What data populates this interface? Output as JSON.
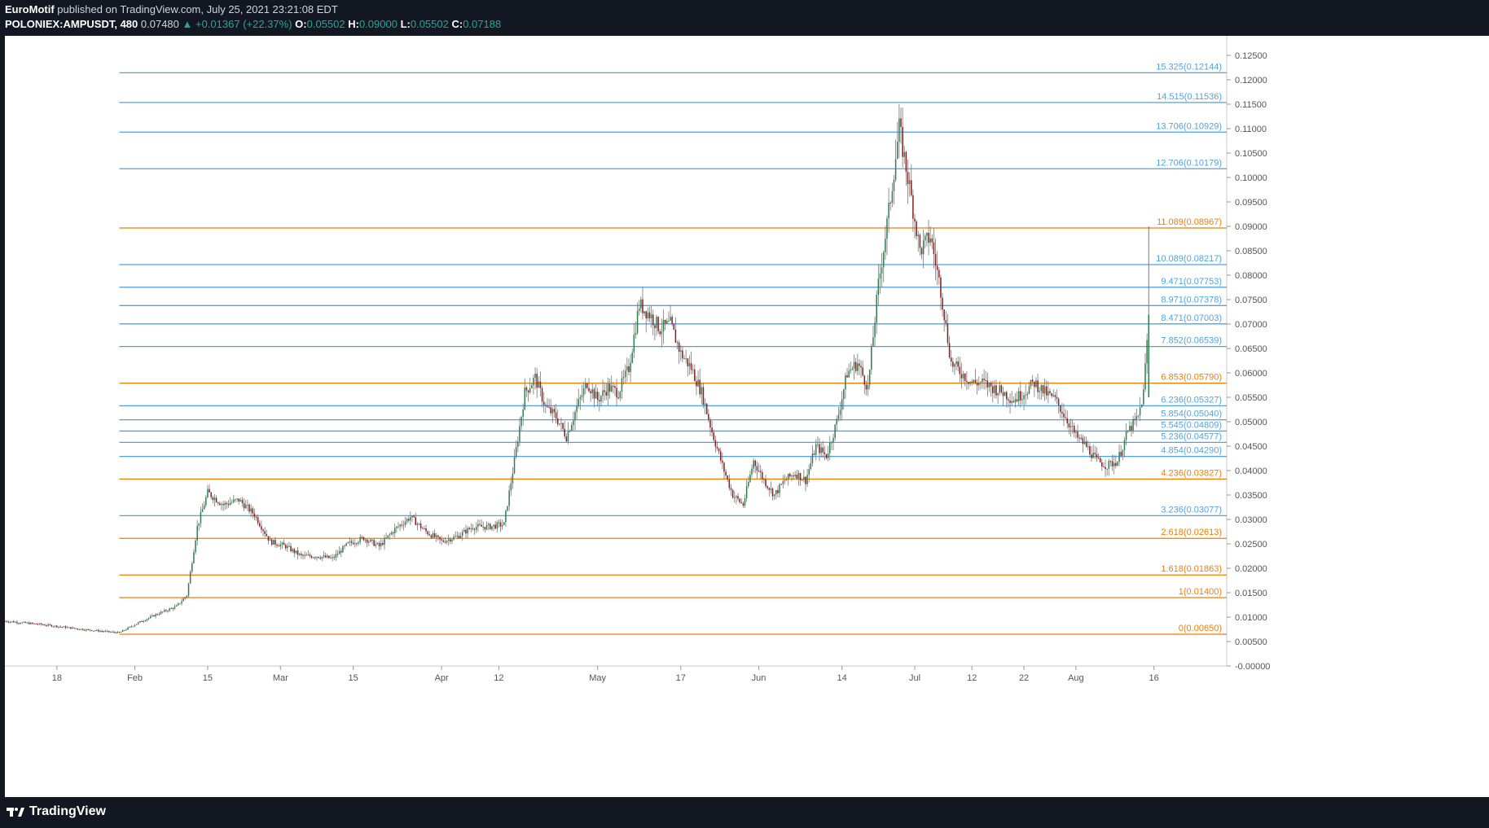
{
  "header": {
    "publisher": "EuroMotif",
    "published_text": "published on TradingView.com, July 25, 2021 23:21:08 EDT",
    "symbol": "POLONIEX:AMPUSDT, 480",
    "last": "0.07480",
    "change": "▲ +0.01367 (+22.37%)",
    "o_label": "O:",
    "o_value": "0.05502",
    "h_label": "H:",
    "h_value": "0.09000",
    "l_label": "L:",
    "l_value": "0.05502",
    "c_label": "C:",
    "c_value": "0.07188"
  },
  "footer": {
    "brand": "TradingView"
  },
  "colors": {
    "up": "#26a69a",
    "candle_up": "#2e7d4f",
    "candle_down": "#8b1a1a",
    "fib_blue": "#4fa3e0",
    "fib_orange": "#f57c00",
    "axis_text": "#555555"
  },
  "chart_data": {
    "type": "candlestick",
    "symbol": "AMPUSDT",
    "timeframe": "480",
    "ylim": [
      0,
      0.128
    ],
    "y_ticks": [
      "0.12500",
      "0.12000",
      "0.11500",
      "0.11000",
      "0.10500",
      "0.10000",
      "0.09500",
      "0.09000",
      "0.08500",
      "0.08000",
      "0.07500",
      "0.07000",
      "0.06500",
      "0.06000",
      "0.05500",
      "0.05000",
      "0.04500",
      "0.04000",
      "0.03500",
      "0.03000",
      "0.02500",
      "0.02000",
      "0.01500",
      "0.01000",
      "0.00500",
      "-0.00000"
    ],
    "x_ticks": [
      "18",
      "Feb",
      "15",
      "Mar",
      "15",
      "Apr",
      "12",
      "May",
      "17",
      "Jun",
      "14",
      "Jul",
      "12",
      "22",
      "Aug",
      "16"
    ],
    "x_tick_days": [
      17,
      32,
      46,
      60,
      74,
      91,
      102,
      121,
      137,
      152,
      168,
      182,
      193,
      203,
      213,
      228
    ],
    "x_range_days": [
      7,
      242
    ],
    "fib_start_day": 29,
    "fib_levels": [
      {
        "label": "15.325(0.12144)",
        "value": 0.12144,
        "color": "blue"
      },
      {
        "label": "14.515(0.11536)",
        "value": 0.11536,
        "color": "blue"
      },
      {
        "label": "13.706(0.10929)",
        "value": 0.10929,
        "color": "blue"
      },
      {
        "label": "12.706(0.10179)",
        "value": 0.10179,
        "color": "blue"
      },
      {
        "label": "11.089(0.08967)",
        "value": 0.08967,
        "color": "orange"
      },
      {
        "label": "10.089(0.08217)",
        "value": 0.08217,
        "color": "blue"
      },
      {
        "label": "9.471(0.07753)",
        "value": 0.07753,
        "color": "blue"
      },
      {
        "label": "8.971(0.07378)",
        "value": 0.07378,
        "color": "blue"
      },
      {
        "label": "8.471(0.07003)",
        "value": 0.07003,
        "color": "blue"
      },
      {
        "label": "7.852(0.06539)",
        "value": 0.06539,
        "color": "blue"
      },
      {
        "label": "6.853(0.05790)",
        "value": 0.0579,
        "color": "orange"
      },
      {
        "label": "6.236(0.05327)",
        "value": 0.05327,
        "color": "blue"
      },
      {
        "label": "5.854(0.05040)",
        "value": 0.0504,
        "color": "blue"
      },
      {
        "label": "5.545(0.04809)",
        "value": 0.04809,
        "color": "blue"
      },
      {
        "label": "5.236(0.04577)",
        "value": 0.04577,
        "color": "blue"
      },
      {
        "label": "4.854(0.04290)",
        "value": 0.0429,
        "color": "blue"
      },
      {
        "label": "4.236(0.03827)",
        "value": 0.03827,
        "color": "orange"
      },
      {
        "label": "3.236(0.03077)",
        "value": 0.03077,
        "color": "blue"
      },
      {
        "label": "2.618(0.02613)",
        "value": 0.02613,
        "color": "orange"
      },
      {
        "label": "1.618(0.01863)",
        "value": 0.01863,
        "color": "orange"
      },
      {
        "label": "1(0.01400)",
        "value": 0.014,
        "color": "orange"
      },
      {
        "label": "0(0.00650)",
        "value": 0.0065,
        "color": "orange"
      }
    ],
    "price_path": [
      [
        7,
        0.0092
      ],
      [
        14,
        0.0085
      ],
      [
        22,
        0.0075
      ],
      [
        29,
        0.0068
      ],
      [
        32,
        0.0085
      ],
      [
        36,
        0.0105
      ],
      [
        40,
        0.0122
      ],
      [
        42,
        0.0145
      ],
      [
        44,
        0.0285
      ],
      [
        46,
        0.0355
      ],
      [
        49,
        0.033
      ],
      [
        52,
        0.034
      ],
      [
        55,
        0.031
      ],
      [
        58,
        0.0255
      ],
      [
        61,
        0.0245
      ],
      [
        64,
        0.0225
      ],
      [
        67,
        0.0225
      ],
      [
        70,
        0.022
      ],
      [
        73,
        0.025
      ],
      [
        76,
        0.0262
      ],
      [
        79,
        0.0245
      ],
      [
        82,
        0.028
      ],
      [
        85,
        0.0305
      ],
      [
        88,
        0.0275
      ],
      [
        91,
        0.0255
      ],
      [
        94,
        0.0265
      ],
      [
        97,
        0.0285
      ],
      [
        100,
        0.0285
      ],
      [
        103,
        0.029
      ],
      [
        105,
        0.042
      ],
      [
        107,
        0.056
      ],
      [
        109,
        0.059
      ],
      [
        111,
        0.053
      ],
      [
        113,
        0.051
      ],
      [
        115,
        0.047
      ],
      [
        117,
        0.053
      ],
      [
        119,
        0.058
      ],
      [
        121,
        0.0545
      ],
      [
        123,
        0.057
      ],
      [
        125,
        0.056
      ],
      [
        127,
        0.061
      ],
      [
        129,
        0.074
      ],
      [
        131,
        0.072
      ],
      [
        133,
        0.069
      ],
      [
        135,
        0.07
      ],
      [
        137,
        0.064
      ],
      [
        139,
        0.061
      ],
      [
        141,
        0.056
      ],
      [
        143,
        0.048
      ],
      [
        145,
        0.041
      ],
      [
        147,
        0.035
      ],
      [
        149,
        0.033
      ],
      [
        151,
        0.042
      ],
      [
        153,
        0.038
      ],
      [
        155,
        0.035
      ],
      [
        157,
        0.038
      ],
      [
        159,
        0.0395
      ],
      [
        161,
        0.038
      ],
      [
        163,
        0.045
      ],
      [
        165,
        0.043
      ],
      [
        167,
        0.05
      ],
      [
        169,
        0.06
      ],
      [
        171,
        0.062
      ],
      [
        173,
        0.057
      ],
      [
        175,
        0.078
      ],
      [
        177,
        0.093
      ],
      [
        179,
        0.11
      ],
      [
        181,
        0.098
      ],
      [
        183,
        0.085
      ],
      [
        185,
        0.088
      ],
      [
        187,
        0.077
      ],
      [
        189,
        0.062
      ],
      [
        191,
        0.06
      ],
      [
        193,
        0.058
      ],
      [
        195,
        0.058
      ],
      [
        197,
        0.057
      ],
      [
        199,
        0.056
      ],
      [
        201,
        0.0545
      ],
      [
        203,
        0.056
      ],
      [
        205,
        0.058
      ],
      [
        207,
        0.056
      ],
      [
        209,
        0.0545
      ],
      [
        211,
        0.051
      ],
      [
        213,
        0.047
      ],
      [
        215,
        0.045
      ],
      [
        217,
        0.042
      ],
      [
        219,
        0.041
      ],
      [
        221,
        0.042
      ],
      [
        223,
        0.048
      ],
      [
        225,
        0.051
      ],
      [
        226,
        0.056
      ],
      [
        227,
        0.0719
      ]
    ]
  }
}
